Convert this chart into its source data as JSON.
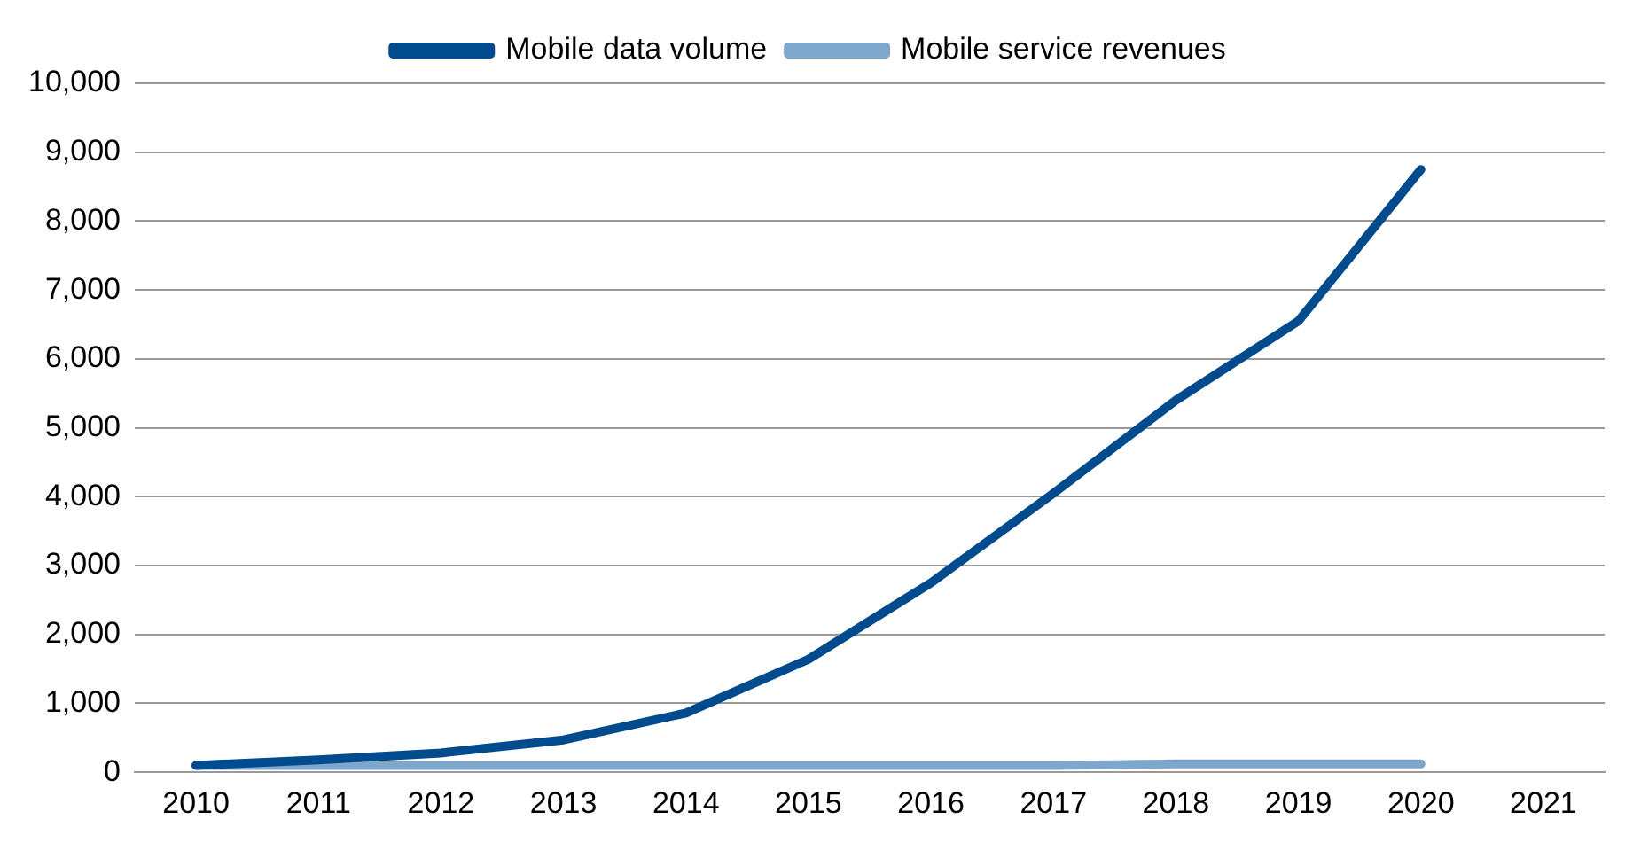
{
  "chart_data": {
    "type": "line",
    "categories": [
      "2010",
      "2011",
      "2012",
      "2013",
      "2014",
      "2015",
      "2016",
      "2017",
      "2018",
      "2019",
      "2020",
      "2021"
    ],
    "series": [
      {
        "name": "Mobile data volume",
        "color": "#004b8d",
        "values": [
          100,
          180,
          280,
          470,
          860,
          1640,
          2750,
          4050,
          5400,
          6550,
          8750,
          null
        ]
      },
      {
        "name": "Mobile service revenues",
        "color": "#7fa7cc",
        "values": [
          100,
          100,
          100,
          100,
          100,
          100,
          100,
          100,
          120,
          120,
          120,
          null
        ]
      }
    ],
    "ylim": [
      0,
      10000
    ],
    "yticks": [
      {
        "value": 0,
        "label": "0"
      },
      {
        "value": 1000,
        "label": "1,000"
      },
      {
        "value": 2000,
        "label": "2,000"
      },
      {
        "value": 3000,
        "label": "3,000"
      },
      {
        "value": 4000,
        "label": "4,000"
      },
      {
        "value": 5000,
        "label": "5,000"
      },
      {
        "value": 6000,
        "label": "6,000"
      },
      {
        "value": 7000,
        "label": "7,000"
      },
      {
        "value": 8000,
        "label": "8,000"
      },
      {
        "value": 9000,
        "label": "9,000"
      },
      {
        "value": 10000,
        "label": "10,000"
      }
    ],
    "grid": "y",
    "legend": "top",
    "marker": "none",
    "line_style": "solid"
  }
}
